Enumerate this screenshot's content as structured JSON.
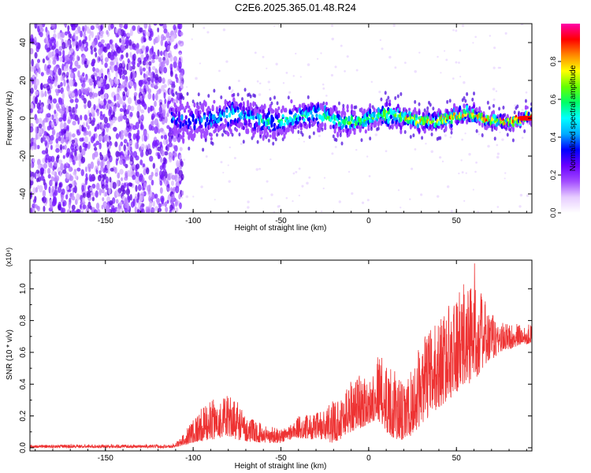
{
  "title": "C2E6.2025.365.01.48.R24",
  "chart_data": [
    {
      "type": "heatmap",
      "xlabel": "Height of straight line (km)",
      "ylabel": "Frequency (Hz)",
      "xlim": [
        -193,
        93
      ],
      "ylim": [
        -50,
        50
      ],
      "xticks": [
        -150,
        -100,
        -50,
        0,
        50
      ],
      "yticks": [
        -40,
        -20,
        0,
        20,
        40
      ],
      "colorbar": {
        "label": "Normalized spectral amplitude",
        "range": [
          0,
          1
        ],
        "ticks": [
          "0.0",
          "0.2",
          "0.4",
          "0.6",
          "0.8"
        ],
        "colors": [
          "#ffffff",
          "#e6ccff",
          "#a24bff",
          "#6a00ff",
          "#0000ff",
          "#00aaff",
          "#00ffff",
          "#00ff66",
          "#66ff00",
          "#ffff00",
          "#ff8800",
          "#ff0000",
          "#ff00aa"
        ]
      },
      "regions": [
        {
          "x": [
            -193,
            -112
          ],
          "description_level": 0.15
        },
        {
          "x": [
            -112,
            93
          ],
          "center_hz": 0
        }
      ]
    },
    {
      "type": "line",
      "xlabel": "Height of straight line (km)",
      "ylabel": "SNR (10 * v/v)",
      "multiplier": "(x10⁴)",
      "xlim": [
        -193,
        93
      ],
      "ylim": [
        -0.02,
        1.18
      ],
      "xticks": [
        -150,
        -100,
        -50,
        0,
        50
      ],
      "yticks": [
        "0.0",
        "0.2",
        "0.4",
        "0.6",
        "0.8",
        "1.0"
      ],
      "color": "#ee3333",
      "envelope": {
        "x": [
          -193,
          -112,
          -107,
          -100,
          -90,
          -80,
          -75,
          -70,
          -60,
          -50,
          -45,
          -40,
          -30,
          -25,
          -20,
          -15,
          -10,
          -5,
          0,
          5,
          10,
          15,
          20,
          25,
          30,
          35,
          40,
          45,
          50,
          55,
          60,
          65,
          70,
          75,
          80,
          85,
          93
        ],
        "lo": [
          0.0,
          0.0,
          0.01,
          0.03,
          0.05,
          0.07,
          0.05,
          0.04,
          0.03,
          0.03,
          0.05,
          0.06,
          0.05,
          0.04,
          0.03,
          0.06,
          0.1,
          0.12,
          0.15,
          0.18,
          0.1,
          0.05,
          0.04,
          0.08,
          0.15,
          0.2,
          0.25,
          0.3,
          0.35,
          0.38,
          0.42,
          0.5,
          0.55,
          0.6,
          0.62,
          0.64,
          0.66
        ],
        "hi": [
          0.02,
          0.02,
          0.06,
          0.2,
          0.3,
          0.33,
          0.31,
          0.2,
          0.15,
          0.12,
          0.15,
          0.2,
          0.22,
          0.25,
          0.3,
          0.35,
          0.45,
          0.48,
          0.4,
          0.6,
          0.55,
          0.48,
          0.4,
          0.5,
          0.68,
          0.75,
          0.82,
          0.9,
          0.95,
          1.05,
          1.18,
          0.95,
          0.85,
          0.8,
          0.78,
          0.78,
          0.78
        ]
      }
    }
  ]
}
